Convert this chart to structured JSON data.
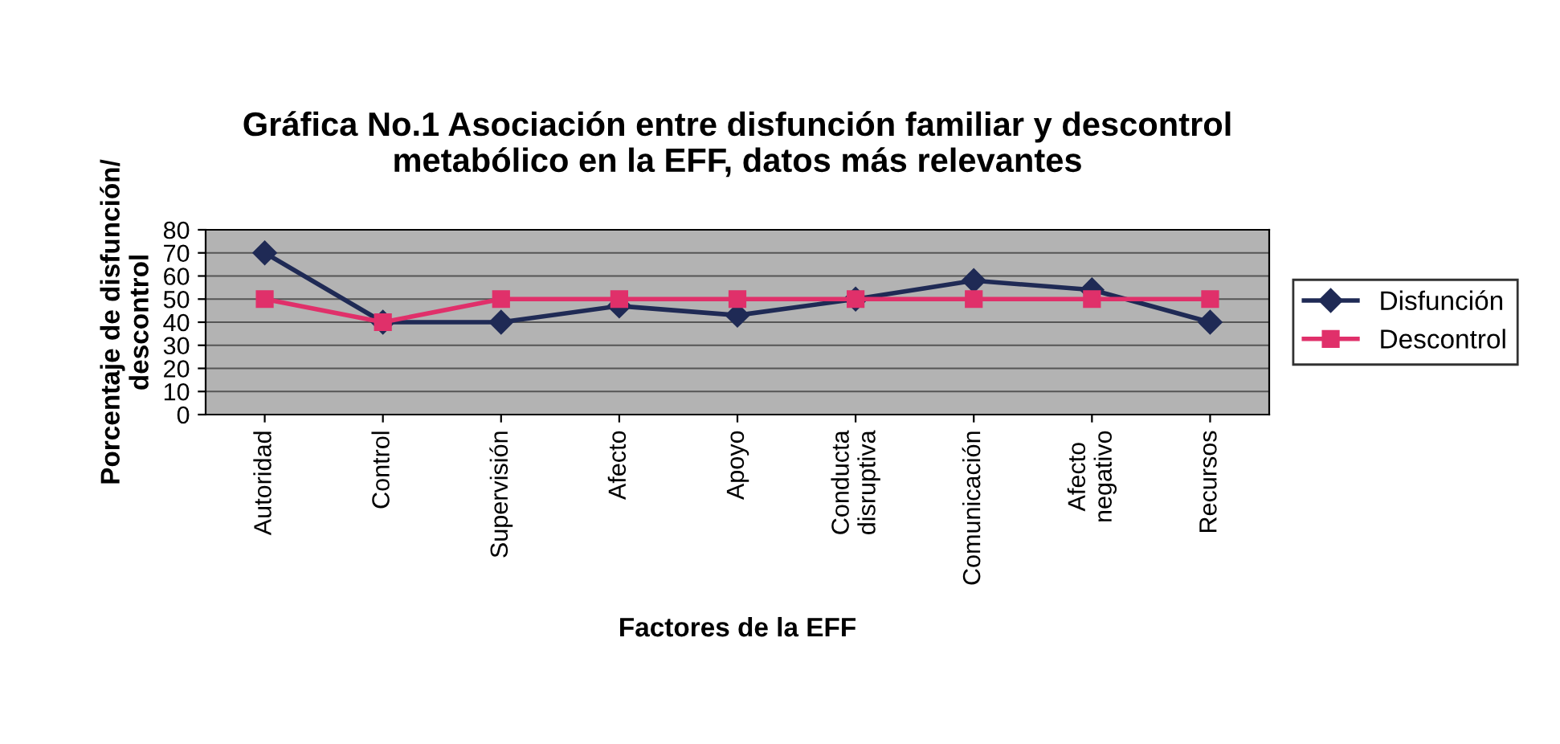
{
  "chart_data": {
    "type": "line",
    "title": "Gráfica No.1 Asociación entre disfunción familiar y descontrol\nmetabólico en la EFF, datos más relevantes",
    "xlabel": "Factores de la EFF",
    "ylabel": "Porcentaje de disfunción/\ndescontrol",
    "categories": [
      "Autoridad",
      "Control",
      "Supervisión",
      "Afecto",
      "Apoyo",
      "Conducta\ndisruptiva",
      "Comunicación",
      "Afecto\nnegativo",
      "Recursos"
    ],
    "series": [
      {
        "name": "Disfunción",
        "color": "#1f2a55",
        "marker": "diamond",
        "values": [
          70,
          40,
          40,
          47,
          43,
          50,
          58,
          54,
          40
        ]
      },
      {
        "name": "Descontrol",
        "color": "#e0306a",
        "marker": "square",
        "values": [
          50,
          40,
          50,
          50,
          50,
          50,
          50,
          50,
          50
        ]
      }
    ],
    "ylim": [
      0,
      80
    ],
    "yticks": [
      0,
      10,
      20,
      30,
      40,
      50,
      60,
      70,
      80
    ],
    "grid": "y",
    "legend": "right",
    "line_style": "solid"
  }
}
